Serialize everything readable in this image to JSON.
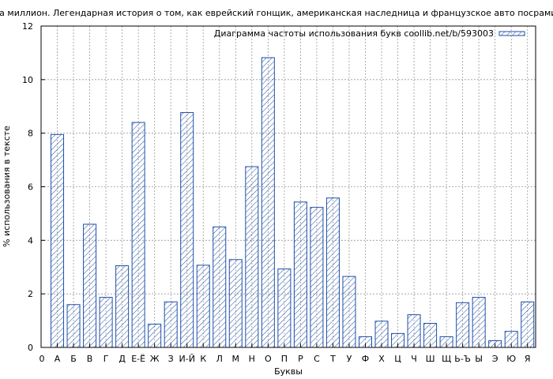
{
  "chart_data": {
    "type": "bar",
    "title": "ь на миллион. Легендарная история о том, как еврейский гонщик, американская наследница и французское авто посрамили гитлеровск",
    "xlabel": "Буквы",
    "ylabel": "% использования в тексте",
    "ylim": [
      0,
      12
    ],
    "yticks": [
      "0",
      "2",
      "4",
      "6",
      "8",
      "10",
      "12"
    ],
    "x_zero_label": "0",
    "grid": true,
    "legend_position": "top-right",
    "categories": [
      "А",
      "Б",
      "В",
      "Г",
      "Д",
      "Е-Ё",
      "Ж",
      "З",
      "И-Й",
      "К",
      "Л",
      "М",
      "Н",
      "О",
      "П",
      "Р",
      "С",
      "Т",
      "У",
      "Ф",
      "Х",
      "Ц",
      "Ч",
      "Ш",
      "Щ",
      "Ь-Ъ",
      "Ы",
      "Э",
      "Ю",
      "Я"
    ],
    "series": [
      {
        "name": "Диаграмма частоты использования букв coollib.net/b/593003",
        "color": "#1f4fa8",
        "values": [
          7.95,
          1.6,
          4.6,
          1.87,
          3.05,
          8.4,
          0.87,
          1.7,
          8.77,
          3.07,
          4.5,
          3.28,
          6.75,
          10.82,
          2.93,
          5.43,
          5.23,
          5.58,
          2.65,
          0.4,
          0.98,
          0.52,
          1.22,
          0.9,
          0.4,
          1.67,
          1.87,
          0.25,
          0.6,
          1.7
        ]
      }
    ]
  }
}
